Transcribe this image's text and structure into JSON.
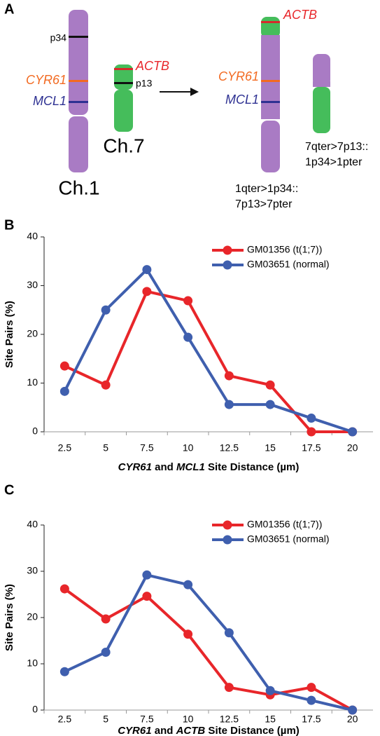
{
  "panel_labels": [
    "A",
    "B",
    "C"
  ],
  "diagram": {
    "labels": [
      "p34",
      "CYR61",
      "MCL1",
      "Ch.1",
      "ACTB",
      "p13",
      "Ch.7",
      "ACTB",
      "CYR61",
      "MCL1",
      "7qter>7p13::",
      "1p34>1pter",
      "1qter>1p34::",
      "7p13>7pter"
    ]
  },
  "chart_data": [
    {
      "type": "line",
      "ylabel": "Site Pairs (%)",
      "xlabel": [
        {
          "text": "CYR61",
          "italic": true
        },
        {
          "text": " and ",
          "italic": false
        },
        {
          "text": "MCL1",
          "italic": true
        },
        {
          "text": " Site Distance (µm)",
          "italic": false
        }
      ],
      "categories": [
        "2.5",
        "5",
        "7.5",
        "10",
        "12.5",
        "15",
        "17.5",
        "20"
      ],
      "series": [
        {
          "name": "GM01356 (t(1;7))",
          "color": "#e8262a",
          "values": [
            13.5,
            9.6,
            28.8,
            26.9,
            11.5,
            9.6,
            0,
            0
          ]
        },
        {
          "name": "GM03651 (normal)",
          "color": "#3f5fae",
          "values": [
            8.3,
            25,
            33.3,
            19.4,
            5.6,
            5.6,
            2.8,
            0
          ]
        }
      ],
      "ylim": [
        0,
        40
      ],
      "yticks": [
        0,
        10,
        20,
        30,
        40
      ],
      "legend": "upper right"
    },
    {
      "type": "line",
      "ylabel": "Site Pairs (%)",
      "xlabel": [
        {
          "text": "CYR61",
          "italic": true
        },
        {
          "text": " and ",
          "italic": false
        },
        {
          "text": "ACTB",
          "italic": true
        },
        {
          "text": " Site Distance (µm)",
          "italic": false
        }
      ],
      "categories": [
        "2.5",
        "5",
        "7.5",
        "10",
        "12.5",
        "15",
        "17.5",
        "20"
      ],
      "series": [
        {
          "name": "GM01356 (t(1;7))",
          "color": "#e8262a",
          "values": [
            26.2,
            19.7,
            24.6,
            16.4,
            4.9,
            3.3,
            4.9,
            0
          ]
        },
        {
          "name": "GM03651 (normal)",
          "color": "#3f5fae",
          "values": [
            8.3,
            12.5,
            29.2,
            27.1,
            16.7,
            4.2,
            2.1,
            0
          ]
        }
      ],
      "ylim": [
        0,
        40
      ],
      "yticks": [
        0,
        10,
        20,
        30,
        40
      ],
      "legend": "upper right"
    }
  ]
}
